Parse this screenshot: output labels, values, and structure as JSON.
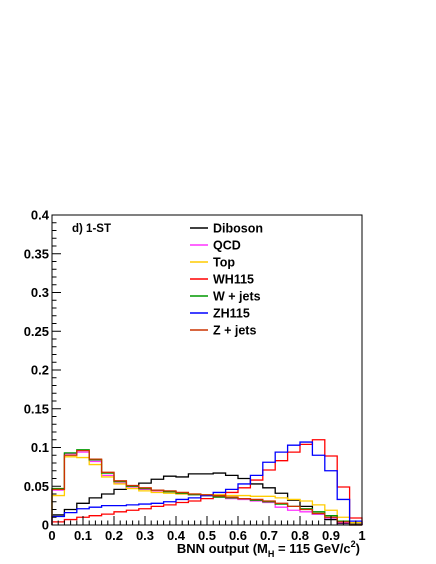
{
  "chart_data": {
    "type": "step-histogram",
    "panel_label": "d) 1-ST",
    "xlabel": "BNN output (M_H = 115 GeV/c^2)",
    "xlabel_parts": {
      "pre": "BNN output (M",
      "sub": "H",
      "mid": " = 115 GeV/c",
      "sup": "2",
      "post": ")"
    },
    "xlim": [
      0,
      1
    ],
    "ylim": [
      0,
      0.4
    ],
    "x_ticks": [
      "0",
      "0.1",
      "0.2",
      "0.3",
      "0.4",
      "0.5",
      "0.6",
      "0.7",
      "0.8",
      "0.9",
      "1"
    ],
    "y_ticks": [
      "0",
      "0.05",
      "0.1",
      "0.15",
      "0.2",
      "0.25",
      "0.3",
      "0.35",
      "0.4"
    ],
    "bin_edges": [
      0,
      0.04,
      0.08,
      0.12,
      0.16,
      0.2,
      0.24,
      0.28,
      0.32,
      0.36,
      0.4,
      0.44,
      0.48,
      0.52,
      0.56,
      0.6,
      0.64,
      0.68,
      0.72,
      0.76,
      0.8,
      0.84,
      0.88,
      0.92,
      0.96,
      1.0
    ],
    "legend_position": "top-center",
    "series": [
      {
        "name": "Diboson",
        "color": "#000000",
        "values": [
          0.013,
          0.02,
          0.028,
          0.035,
          0.04,
          0.046,
          0.05,
          0.054,
          0.059,
          0.063,
          0.062,
          0.066,
          0.066,
          0.067,
          0.064,
          0.06,
          0.053,
          0.048,
          0.041,
          0.032,
          0.024,
          0.014,
          0.007,
          0.002,
          0.001
        ]
      },
      {
        "name": "QCD",
        "color": "#ff33ff",
        "values": [
          0.045,
          0.092,
          0.094,
          0.082,
          0.064,
          0.054,
          0.049,
          0.046,
          0.044,
          0.043,
          0.04,
          0.039,
          0.038,
          0.036,
          0.034,
          0.033,
          0.031,
          0.029,
          0.023,
          0.019,
          0.017,
          0.014,
          0.009,
          0.003,
          0.0
        ]
      },
      {
        "name": "Top",
        "color": "#ffcc00",
        "values": [
          0.038,
          0.088,
          0.087,
          0.078,
          0.062,
          0.053,
          0.047,
          0.044,
          0.042,
          0.041,
          0.04,
          0.04,
          0.039,
          0.039,
          0.038,
          0.038,
          0.037,
          0.037,
          0.035,
          0.033,
          0.031,
          0.026,
          0.019,
          0.01,
          0.003
        ]
      },
      {
        "name": "WH115",
        "color": "#ff0000",
        "values": [
          0.004,
          0.007,
          0.01,
          0.012,
          0.014,
          0.017,
          0.019,
          0.021,
          0.024,
          0.026,
          0.029,
          0.031,
          0.034,
          0.037,
          0.042,
          0.048,
          0.058,
          0.071,
          0.083,
          0.094,
          0.104,
          0.11,
          0.089,
          0.049,
          0.009
        ]
      },
      {
        "name": "W + jets",
        "color": "#009900",
        "values": [
          0.047,
          0.093,
          0.097,
          0.084,
          0.067,
          0.056,
          0.05,
          0.047,
          0.045,
          0.043,
          0.041,
          0.039,
          0.038,
          0.036,
          0.035,
          0.034,
          0.032,
          0.03,
          0.027,
          0.024,
          0.021,
          0.017,
          0.012,
          0.005,
          0.0
        ]
      },
      {
        "name": "ZH115",
        "color": "#0000ff",
        "values": [
          0.011,
          0.016,
          0.021,
          0.023,
          0.025,
          0.025,
          0.026,
          0.027,
          0.028,
          0.03,
          0.033,
          0.035,
          0.038,
          0.042,
          0.046,
          0.053,
          0.064,
          0.081,
          0.094,
          0.103,
          0.107,
          0.09,
          0.07,
          0.033,
          0.005
        ]
      },
      {
        "name": "Z + jets",
        "color": "#cc3300",
        "values": [
          0.046,
          0.09,
          0.096,
          0.085,
          0.068,
          0.057,
          0.051,
          0.048,
          0.045,
          0.044,
          0.042,
          0.04,
          0.039,
          0.038,
          0.036,
          0.034,
          0.033,
          0.031,
          0.028,
          0.024,
          0.02,
          0.015,
          0.01,
          0.004,
          0.0
        ]
      }
    ]
  }
}
